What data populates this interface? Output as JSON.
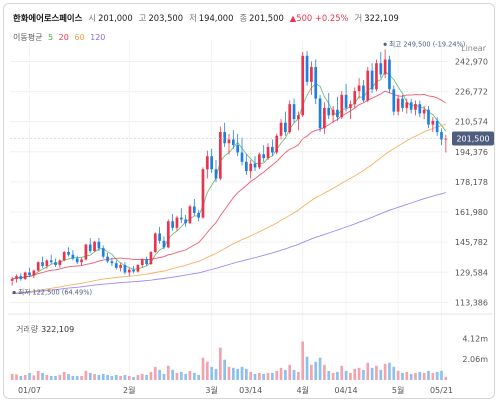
{
  "header": {
    "name": "한화에어로스페이스",
    "open_label": "시",
    "open": "201,000",
    "high_label": "고",
    "high": "203,500",
    "low_label": "저",
    "low": "194,000",
    "close_label": "종",
    "close": "201,500",
    "change": "▲500 +0.25%",
    "volume_label": "거",
    "volume": "322,109"
  },
  "ma_legend": {
    "label": "이동평균",
    "periods": [
      "5",
      "20",
      "60",
      "120"
    ],
    "colors": [
      "#4caf50",
      "#e8344e",
      "#f0a040",
      "#8a6cf0"
    ]
  },
  "scale_label": "Linear",
  "colors": {
    "up": "#e8344e",
    "down": "#1e7fe0",
    "vol_up": "#f2a3ae",
    "vol_down": "#8cc0ef",
    "badge": "#4f5d7e"
  },
  "chart_data": {
    "type": "candlestick",
    "y_ticks": [
      "242,970",
      "226,772",
      "210,574",
      "194,376",
      "178,178",
      "161,980",
      "145,782",
      "129,584",
      "113,386"
    ],
    "y_tick_values": [
      242970,
      226772,
      210574,
      194376,
      178178,
      161980,
      145782,
      129584,
      113386
    ],
    "x_ticks": [
      "01/07",
      "2월",
      "3월",
      "03/14",
      "4월",
      "04/14",
      "5월",
      "05/21"
    ],
    "x_tick_index": [
      4,
      27,
      46,
      55,
      67,
      77,
      89,
      99
    ],
    "last_price_badge": "201,500",
    "annotations": {
      "max": {
        "label": "최고 249,500 (-19.24%)",
        "value": 249500,
        "index": 86
      },
      "min": {
        "label": "최저 122,500 (64.49%)",
        "value": 122500,
        "index": 0
      }
    },
    "candles": [
      [
        125000,
        127000,
        122500,
        126000
      ],
      [
        126000,
        128500,
        124000,
        127500
      ],
      [
        127500,
        129000,
        125000,
        126000
      ],
      [
        126000,
        130000,
        125500,
        129500
      ],
      [
        129500,
        132000,
        127000,
        128000
      ],
      [
        128000,
        131000,
        126500,
        130500
      ],
      [
        130500,
        135500,
        130000,
        135000
      ],
      [
        135000,
        138000,
        132000,
        133000
      ],
      [
        133000,
        136500,
        131500,
        136000
      ],
      [
        136000,
        139000,
        134000,
        135000
      ],
      [
        135000,
        137000,
        132500,
        133500
      ],
      [
        133500,
        136500,
        132000,
        136000
      ],
      [
        136000,
        141000,
        135500,
        140500
      ],
      [
        140500,
        143000,
        138000,
        139000
      ],
      [
        139000,
        141500,
        136000,
        137000
      ],
      [
        137000,
        138500,
        134000,
        135000
      ],
      [
        135000,
        137500,
        133000,
        136500
      ],
      [
        136500,
        145000,
        136000,
        144500
      ],
      [
        144500,
        148000,
        140000,
        141000
      ],
      [
        141000,
        146500,
        140500,
        146000
      ],
      [
        146000,
        148000,
        141000,
        142500
      ],
      [
        142500,
        144000,
        137000,
        138000
      ],
      [
        138000,
        140000,
        134500,
        135500
      ],
      [
        135500,
        137500,
        133000,
        134500
      ],
      [
        134500,
        136000,
        131000,
        132000
      ],
      [
        132000,
        134500,
        130000,
        133500
      ],
      [
        133500,
        135000,
        128500,
        129500
      ],
      [
        129500,
        132000,
        127500,
        131000
      ],
      [
        131000,
        133000,
        129000,
        130000
      ],
      [
        130000,
        134000,
        129500,
        133500
      ],
      [
        133500,
        137000,
        132000,
        136500
      ],
      [
        136500,
        138000,
        133000,
        134000
      ],
      [
        134000,
        141000,
        133500,
        140500
      ],
      [
        140500,
        151000,
        140000,
        150500
      ],
      [
        150500,
        154000,
        145000,
        146500
      ],
      [
        146500,
        149000,
        142000,
        143000
      ],
      [
        143000,
        158000,
        142500,
        157000
      ],
      [
        157000,
        161000,
        152000,
        153500
      ],
      [
        153500,
        160000,
        152000,
        159000
      ],
      [
        159000,
        164000,
        156000,
        158000
      ],
      [
        158000,
        160500,
        154000,
        156000
      ],
      [
        156000,
        166000,
        155500,
        165000
      ],
      [
        165000,
        169000,
        160000,
        161500
      ],
      [
        161500,
        163000,
        157000,
        159000
      ],
      [
        159000,
        186000,
        158500,
        185000
      ],
      [
        185000,
        195000,
        180000,
        192000
      ],
      [
        192000,
        196000,
        183000,
        185000
      ],
      [
        185000,
        190000,
        178000,
        180000
      ],
      [
        180000,
        208000,
        179000,
        205000
      ],
      [
        205000,
        210000,
        197000,
        199000
      ],
      [
        199000,
        204000,
        193000,
        201000
      ],
      [
        201000,
        206000,
        196000,
        198000
      ],
      [
        198000,
        204000,
        192000,
        194000
      ],
      [
        194000,
        202000,
        187000,
        189000
      ],
      [
        189000,
        193000,
        182000,
        184000
      ],
      [
        184000,
        190000,
        180000,
        188000
      ],
      [
        188000,
        192000,
        184000,
        186000
      ],
      [
        186000,
        194000,
        185000,
        193000
      ],
      [
        193000,
        198000,
        189000,
        191000
      ],
      [
        191000,
        199000,
        190000,
        197000
      ],
      [
        197000,
        201000,
        192000,
        194000
      ],
      [
        194000,
        204000,
        193000,
        203000
      ],
      [
        203000,
        212000,
        201000,
        210000
      ],
      [
        210000,
        216000,
        203000,
        205000
      ],
      [
        205000,
        222000,
        204000,
        220000
      ],
      [
        220000,
        223000,
        210000,
        212000
      ],
      [
        212000,
        216000,
        206000,
        214000
      ],
      [
        214000,
        248000,
        213000,
        246000
      ],
      [
        246000,
        248500,
        230000,
        232000
      ],
      [
        232000,
        243000,
        225000,
        240000
      ],
      [
        240000,
        244000,
        220000,
        223000
      ],
      [
        223000,
        225000,
        205000,
        207000
      ],
      [
        207000,
        221000,
        204000,
        218000
      ],
      [
        218000,
        226000,
        212000,
        214000
      ],
      [
        214000,
        219000,
        210000,
        217000
      ],
      [
        217000,
        224000,
        211000,
        213000
      ],
      [
        213000,
        227000,
        212000,
        225000
      ],
      [
        225000,
        231000,
        216000,
        218000
      ],
      [
        218000,
        222000,
        212000,
        220000
      ],
      [
        220000,
        229000,
        218000,
        227000
      ],
      [
        227000,
        234000,
        223000,
        230000
      ],
      [
        230000,
        233000,
        221000,
        222000
      ],
      [
        222000,
        240000,
        221000,
        238000
      ],
      [
        238000,
        242000,
        226000,
        228000
      ],
      [
        228000,
        244000,
        227000,
        242000
      ],
      [
        242000,
        248000,
        234000,
        236000
      ],
      [
        236000,
        249500,
        234000,
        244000
      ],
      [
        244000,
        246000,
        226000,
        228000
      ],
      [
        228000,
        230000,
        214000,
        216000
      ],
      [
        216000,
        225000,
        214000,
        223000
      ],
      [
        223000,
        225000,
        216000,
        218000
      ],
      [
        218000,
        223000,
        215000,
        221000
      ],
      [
        221000,
        223000,
        215000,
        217000
      ],
      [
        217000,
        222000,
        214000,
        220000
      ],
      [
        220000,
        222000,
        213000,
        215000
      ],
      [
        215000,
        219000,
        212000,
        217000
      ],
      [
        217000,
        219000,
        207000,
        209000
      ],
      [
        209000,
        213000,
        205000,
        211000
      ],
      [
        211000,
        213000,
        203000,
        205000
      ],
      [
        205000,
        207000,
        198000,
        201000
      ],
      [
        201000,
        203500,
        194000,
        201500
      ]
    ],
    "volume_ticks": [
      "4.12m",
      "2.06m"
    ],
    "volume_tick_values": [
      4120000,
      2060000
    ],
    "volume": [
      0.6,
      0.55,
      0.4,
      0.5,
      0.7,
      0.45,
      0.9,
      0.7,
      0.5,
      0.4,
      0.4,
      0.5,
      0.8,
      0.6,
      0.4,
      0.4,
      0.4,
      0.9,
      0.7,
      0.6,
      0.5,
      0.6,
      0.5,
      0.4,
      0.5,
      0.4,
      0.5,
      0.4,
      0.3,
      0.5,
      0.6,
      0.5,
      0.8,
      1.3,
      1.0,
      0.6,
      1.4,
      1.0,
      0.7,
      0.8,
      0.6,
      0.9,
      0.7,
      0.5,
      2.2,
      1.8,
      1.3,
      1.1,
      3.2,
      2.0,
      1.3,
      1.2,
      1.1,
      1.3,
      1.1,
      0.8,
      0.6,
      0.7,
      0.6,
      0.7,
      0.7,
      0.9,
      1.2,
      1.0,
      1.5,
      1.0,
      0.8,
      3.8,
      2.3,
      1.5,
      1.8,
      2.2,
      1.5,
      0.9,
      0.7,
      0.8,
      1.4,
      0.9,
      0.7,
      1.1,
      1.2,
      1.0,
      1.7,
      1.2,
      1.4,
      1.0,
      1.6,
      1.7,
      1.3,
      0.9,
      0.7,
      0.8,
      0.6,
      0.7,
      0.8,
      0.7,
      0.9,
      0.7,
      0.8,
      0.9,
      0.32
    ]
  }
}
